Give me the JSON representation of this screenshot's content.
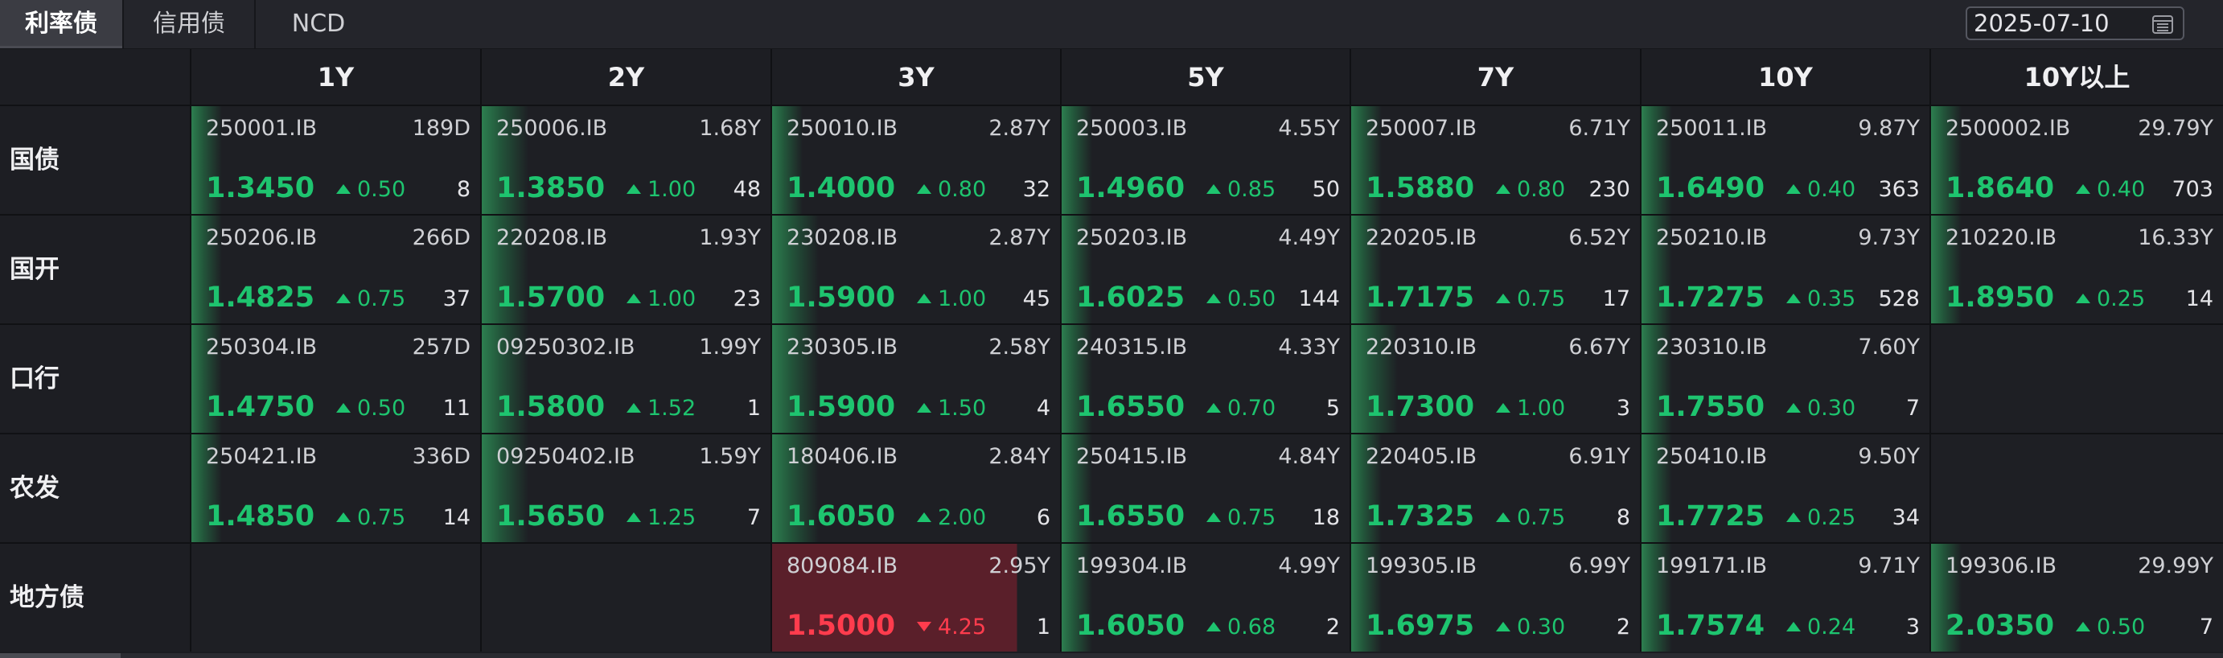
{
  "tabs": [
    {
      "label": "利率债",
      "active": true
    },
    {
      "label": "信用债",
      "active": false
    },
    {
      "label": "NCD",
      "active": false
    }
  ],
  "date": {
    "value": "2025-07-10",
    "icon": "calendar-icon"
  },
  "columns": [
    "1Y",
    "2Y",
    "3Y",
    "5Y",
    "7Y",
    "10Y",
    "10Y以上"
  ],
  "colors": {
    "up": "#1ec46f",
    "down": "#ff3c4d",
    "highlight_bg": "#5a1f2a"
  },
  "rows": [
    {
      "label": "国债",
      "cells": [
        {
          "code": "250001.IB",
          "tenor": "189D",
          "yield": "1.3450",
          "change": "0.50",
          "dir": "up",
          "volume": "8"
        },
        {
          "code": "250006.IB",
          "tenor": "1.68Y",
          "yield": "1.3850",
          "change": "1.00",
          "dir": "up",
          "volume": "48"
        },
        {
          "code": "250010.IB",
          "tenor": "2.87Y",
          "yield": "1.4000",
          "change": "0.80",
          "dir": "up",
          "volume": "32"
        },
        {
          "code": "250003.IB",
          "tenor": "4.55Y",
          "yield": "1.4960",
          "change": "0.85",
          "dir": "up",
          "volume": "50"
        },
        {
          "code": "250007.IB",
          "tenor": "6.71Y",
          "yield": "1.5880",
          "change": "0.80",
          "dir": "up",
          "volume": "230"
        },
        {
          "code": "250011.IB",
          "tenor": "9.87Y",
          "yield": "1.6490",
          "change": "0.40",
          "dir": "up",
          "volume": "363"
        },
        {
          "code": "2500002.IB",
          "tenor": "29.79Y",
          "yield": "1.8640",
          "change": "0.40",
          "dir": "up",
          "volume": "703"
        }
      ]
    },
    {
      "label": "国开",
      "cells": [
        {
          "code": "250206.IB",
          "tenor": "266D",
          "yield": "1.4825",
          "change": "0.75",
          "dir": "up",
          "volume": "37"
        },
        {
          "code": "220208.IB",
          "tenor": "1.93Y",
          "yield": "1.5700",
          "change": "1.00",
          "dir": "up",
          "volume": "23"
        },
        {
          "code": "230208.IB",
          "tenor": "2.87Y",
          "yield": "1.5900",
          "change": "1.00",
          "dir": "up",
          "volume": "45"
        },
        {
          "code": "250203.IB",
          "tenor": "4.49Y",
          "yield": "1.6025",
          "change": "0.50",
          "dir": "up",
          "volume": "144"
        },
        {
          "code": "220205.IB",
          "tenor": "6.52Y",
          "yield": "1.7175",
          "change": "0.75",
          "dir": "up",
          "volume": "17"
        },
        {
          "code": "250210.IB",
          "tenor": "9.73Y",
          "yield": "1.7275",
          "change": "0.35",
          "dir": "up",
          "volume": "528"
        },
        {
          "code": "210220.IB",
          "tenor": "16.33Y",
          "yield": "1.8950",
          "change": "0.25",
          "dir": "up",
          "volume": "14"
        }
      ]
    },
    {
      "label": "口行",
      "cells": [
        {
          "code": "250304.IB",
          "tenor": "257D",
          "yield": "1.4750",
          "change": "0.50",
          "dir": "up",
          "volume": "11"
        },
        {
          "code": "09250302.IB",
          "tenor": "1.99Y",
          "yield": "1.5800",
          "change": "1.52",
          "dir": "up",
          "volume": "1"
        },
        {
          "code": "230305.IB",
          "tenor": "2.58Y",
          "yield": "1.5900",
          "change": "1.50",
          "dir": "up",
          "volume": "4"
        },
        {
          "code": "240315.IB",
          "tenor": "4.33Y",
          "yield": "1.6550",
          "change": "0.70",
          "dir": "up",
          "volume": "5"
        },
        {
          "code": "220310.IB",
          "tenor": "6.67Y",
          "yield": "1.7300",
          "change": "1.00",
          "dir": "up",
          "volume": "3"
        },
        {
          "code": "230310.IB",
          "tenor": "7.60Y",
          "yield": "1.7550",
          "change": "0.30",
          "dir": "up",
          "volume": "7"
        },
        null
      ]
    },
    {
      "label": "农发",
      "cells": [
        {
          "code": "250421.IB",
          "tenor": "336D",
          "yield": "1.4850",
          "change": "0.75",
          "dir": "up",
          "volume": "14"
        },
        {
          "code": "09250402.IB",
          "tenor": "1.59Y",
          "yield": "1.5650",
          "change": "1.25",
          "dir": "up",
          "volume": "7"
        },
        {
          "code": "180406.IB",
          "tenor": "2.84Y",
          "yield": "1.6050",
          "change": "2.00",
          "dir": "up",
          "volume": "6"
        },
        {
          "code": "250415.IB",
          "tenor": "4.84Y",
          "yield": "1.6550",
          "change": "0.75",
          "dir": "up",
          "volume": "18"
        },
        {
          "code": "220405.IB",
          "tenor": "6.91Y",
          "yield": "1.7325",
          "change": "0.75",
          "dir": "up",
          "volume": "8"
        },
        {
          "code": "250410.IB",
          "tenor": "9.50Y",
          "yield": "1.7725",
          "change": "0.25",
          "dir": "up",
          "volume": "34"
        },
        null
      ]
    },
    {
      "label": "地方债",
      "cells": [
        null,
        null,
        {
          "code": "809084.IB",
          "tenor": "2.95Y",
          "yield": "1.5000",
          "change": "4.25",
          "dir": "down",
          "volume": "1",
          "highlight": true
        },
        {
          "code": "199304.IB",
          "tenor": "4.99Y",
          "yield": "1.6050",
          "change": "0.68",
          "dir": "up",
          "volume": "2"
        },
        {
          "code": "199305.IB",
          "tenor": "6.99Y",
          "yield": "1.6975",
          "change": "0.30",
          "dir": "up",
          "volume": "2"
        },
        {
          "code": "199171.IB",
          "tenor": "9.71Y",
          "yield": "1.7574",
          "change": "0.24",
          "dir": "up",
          "volume": "3"
        },
        {
          "code": "199306.IB",
          "tenor": "29.99Y",
          "yield": "2.0350",
          "change": "0.50",
          "dir": "up",
          "volume": "7"
        }
      ]
    }
  ]
}
